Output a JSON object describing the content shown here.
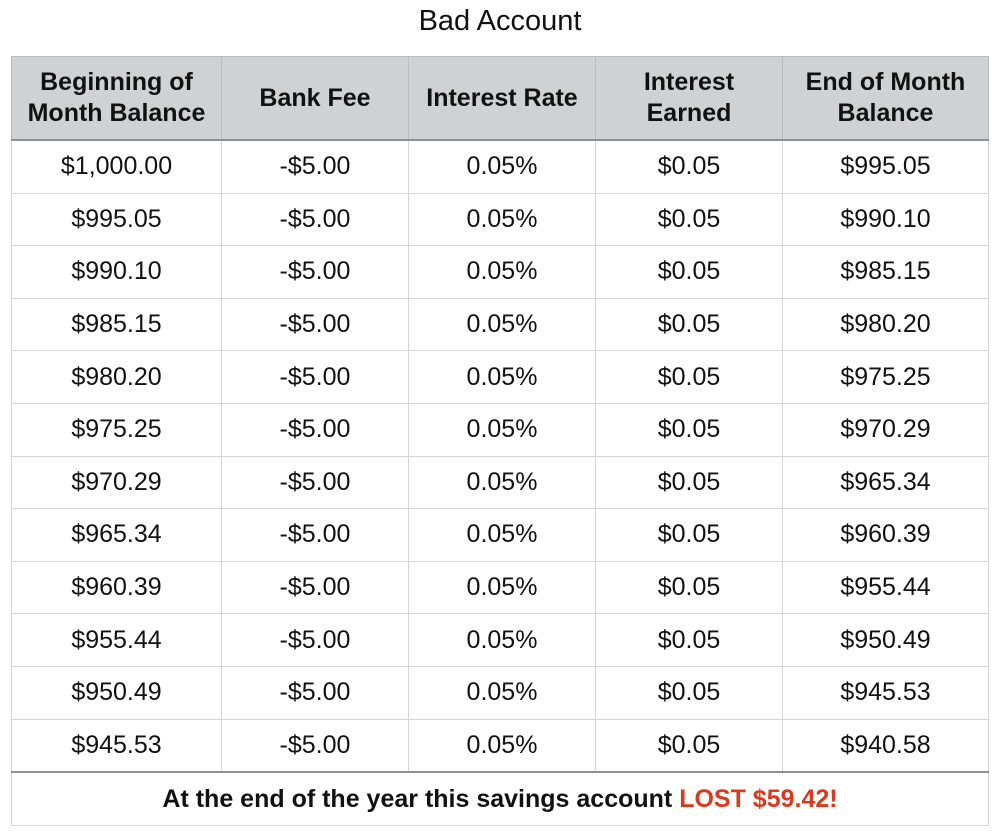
{
  "title": "Bad Account",
  "colors": {
    "header_bg": "#cfd1d4",
    "negative": "#d93a1e",
    "positive": "#4f9a2a",
    "text": "#111111"
  },
  "table": {
    "headers": {
      "col1_line1": "Beginning of",
      "col1_line2": "Month Balance",
      "col2": "Bank Fee",
      "col3": "Interest Rate",
      "col4_line1": "Interest",
      "col4_line2": "Earned",
      "col5_line1": "End of Month",
      "col5_line2": "Balance"
    },
    "rows": [
      {
        "begin": "$1,000.00",
        "fee": "-$5.00",
        "rate": "0.05%",
        "earned": "$0.05",
        "end": "$995.05"
      },
      {
        "begin": "$995.05",
        "fee": "-$5.00",
        "rate": "0.05%",
        "earned": "$0.05",
        "end": "$990.10"
      },
      {
        "begin": "$990.10",
        "fee": "-$5.00",
        "rate": "0.05%",
        "earned": "$0.05",
        "end": "$985.15"
      },
      {
        "begin": "$985.15",
        "fee": "-$5.00",
        "rate": "0.05%",
        "earned": "$0.05",
        "end": "$980.20"
      },
      {
        "begin": "$980.20",
        "fee": "-$5.00",
        "rate": "0.05%",
        "earned": "$0.05",
        "end": "$975.25"
      },
      {
        "begin": "$975.25",
        "fee": "-$5.00",
        "rate": "0.05%",
        "earned": "$0.05",
        "end": "$970.29"
      },
      {
        "begin": "$970.29",
        "fee": "-$5.00",
        "rate": "0.05%",
        "earned": "$0.05",
        "end": "$965.34"
      },
      {
        "begin": "$965.34",
        "fee": "-$5.00",
        "rate": "0.05%",
        "earned": "$0.05",
        "end": "$960.39"
      },
      {
        "begin": "$960.39",
        "fee": "-$5.00",
        "rate": "0.05%",
        "earned": "$0.05",
        "end": "$955.44"
      },
      {
        "begin": "$955.44",
        "fee": "-$5.00",
        "rate": "0.05%",
        "earned": "$0.05",
        "end": "$950.49"
      },
      {
        "begin": "$950.49",
        "fee": "-$5.00",
        "rate": "0.05%",
        "earned": "$0.05",
        "end": "$945.53"
      },
      {
        "begin": "$945.53",
        "fee": "-$5.00",
        "rate": "0.05%",
        "earned": "$0.05",
        "end": "$940.58"
      }
    ],
    "footer": {
      "text": "At the end of the year this savings account",
      "highlight": "LOST $59.42!"
    }
  }
}
